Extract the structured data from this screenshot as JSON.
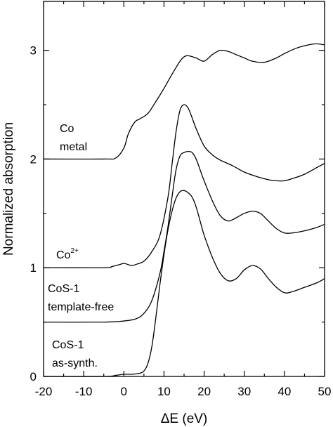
{
  "chart_data": {
    "type": "line",
    "xlabel": "ΔE (eV)",
    "ylabel": "Normalized absorption",
    "xlim": [
      -20,
      50
    ],
    "ylim": [
      0,
      3.45
    ],
    "x_ticks": [
      -20,
      -10,
      0,
      10,
      20,
      30,
      40,
      50
    ],
    "y_ticks": [
      0,
      1,
      2,
      3
    ],
    "grid": false,
    "legend": "none",
    "line_color": "#000000",
    "series": [
      {
        "x": [
          -20,
          -5,
          -2,
          0,
          1,
          2,
          3,
          4,
          6,
          8,
          10,
          12,
          14,
          15,
          16,
          18,
          20,
          22,
          24,
          26,
          28,
          30,
          32,
          35,
          38,
          40,
          43,
          46,
          48,
          50
        ],
        "y": [
          2.0,
          2.0,
          2.01,
          2.1,
          2.22,
          2.3,
          2.35,
          2.37,
          2.42,
          2.53,
          2.65,
          2.78,
          2.9,
          2.94,
          2.95,
          2.93,
          2.9,
          2.96,
          3.0,
          2.99,
          2.96,
          2.93,
          2.9,
          2.89,
          2.93,
          2.97,
          3.02,
          3.05,
          3.06,
          3.05
        ]
      },
      {
        "x": [
          -20,
          -5,
          -3,
          -1,
          0,
          1,
          2,
          3,
          5,
          7,
          9,
          11,
          12,
          13,
          14,
          15,
          16,
          17,
          18,
          20,
          22,
          24,
          27,
          30,
          33,
          36,
          38,
          40,
          42,
          45,
          48,
          50
        ],
        "y": [
          1.0,
          1.0,
          1.01,
          1.03,
          1.04,
          1.03,
          1.02,
          1.03,
          1.06,
          1.15,
          1.3,
          1.65,
          1.95,
          2.25,
          2.45,
          2.5,
          2.47,
          2.38,
          2.28,
          2.12,
          2.04,
          1.99,
          1.94,
          1.88,
          1.84,
          1.81,
          1.8,
          1.8,
          1.82,
          1.86,
          1.92,
          1.96
        ]
      },
      {
        "x": [
          -20,
          -5,
          0,
          3,
          5,
          7,
          9,
          10,
          11,
          12,
          13,
          14,
          15,
          16,
          17,
          18,
          19,
          20,
          22,
          24,
          26,
          28,
          30,
          32,
          34,
          36,
          38,
          40,
          42,
          45,
          48,
          50
        ],
        "y": [
          0.5,
          0.5,
          0.51,
          0.53,
          0.58,
          0.7,
          0.95,
          1.15,
          1.38,
          1.65,
          1.9,
          2.03,
          2.06,
          2.07,
          2.06,
          2.0,
          1.9,
          1.8,
          1.62,
          1.48,
          1.43,
          1.46,
          1.5,
          1.52,
          1.5,
          1.43,
          1.36,
          1.32,
          1.32,
          1.34,
          1.37,
          1.4
        ]
      },
      {
        "x": [
          -20,
          -5,
          -2,
          0,
          2,
          4,
          5,
          6,
          7,
          8,
          9,
          10,
          11,
          12,
          13,
          14,
          15,
          16,
          17,
          18,
          19,
          20,
          22,
          24,
          26,
          28,
          30,
          32,
          34,
          36,
          38,
          40,
          42,
          45,
          48,
          50
        ],
        "y": [
          0.0,
          0.0,
          0.01,
          0.02,
          0.02,
          0.03,
          0.05,
          0.12,
          0.28,
          0.55,
          0.85,
          1.12,
          1.35,
          1.52,
          1.64,
          1.7,
          1.71,
          1.69,
          1.65,
          1.56,
          1.43,
          1.3,
          1.1,
          0.95,
          0.88,
          0.9,
          0.98,
          1.02,
          0.99,
          0.9,
          0.82,
          0.77,
          0.78,
          0.82,
          0.86,
          0.9
        ]
      }
    ],
    "annotations": {
      "co_metal_line1": "Co",
      "co_metal_line2": "metal",
      "co2_base": "Co",
      "co2_sup": "2+",
      "cos1_tf_line1": "CoS-1",
      "cos1_tf_line2": "template-free",
      "cos1_as_line1": "CoS-1",
      "cos1_as_line2": "as-synth."
    }
  }
}
